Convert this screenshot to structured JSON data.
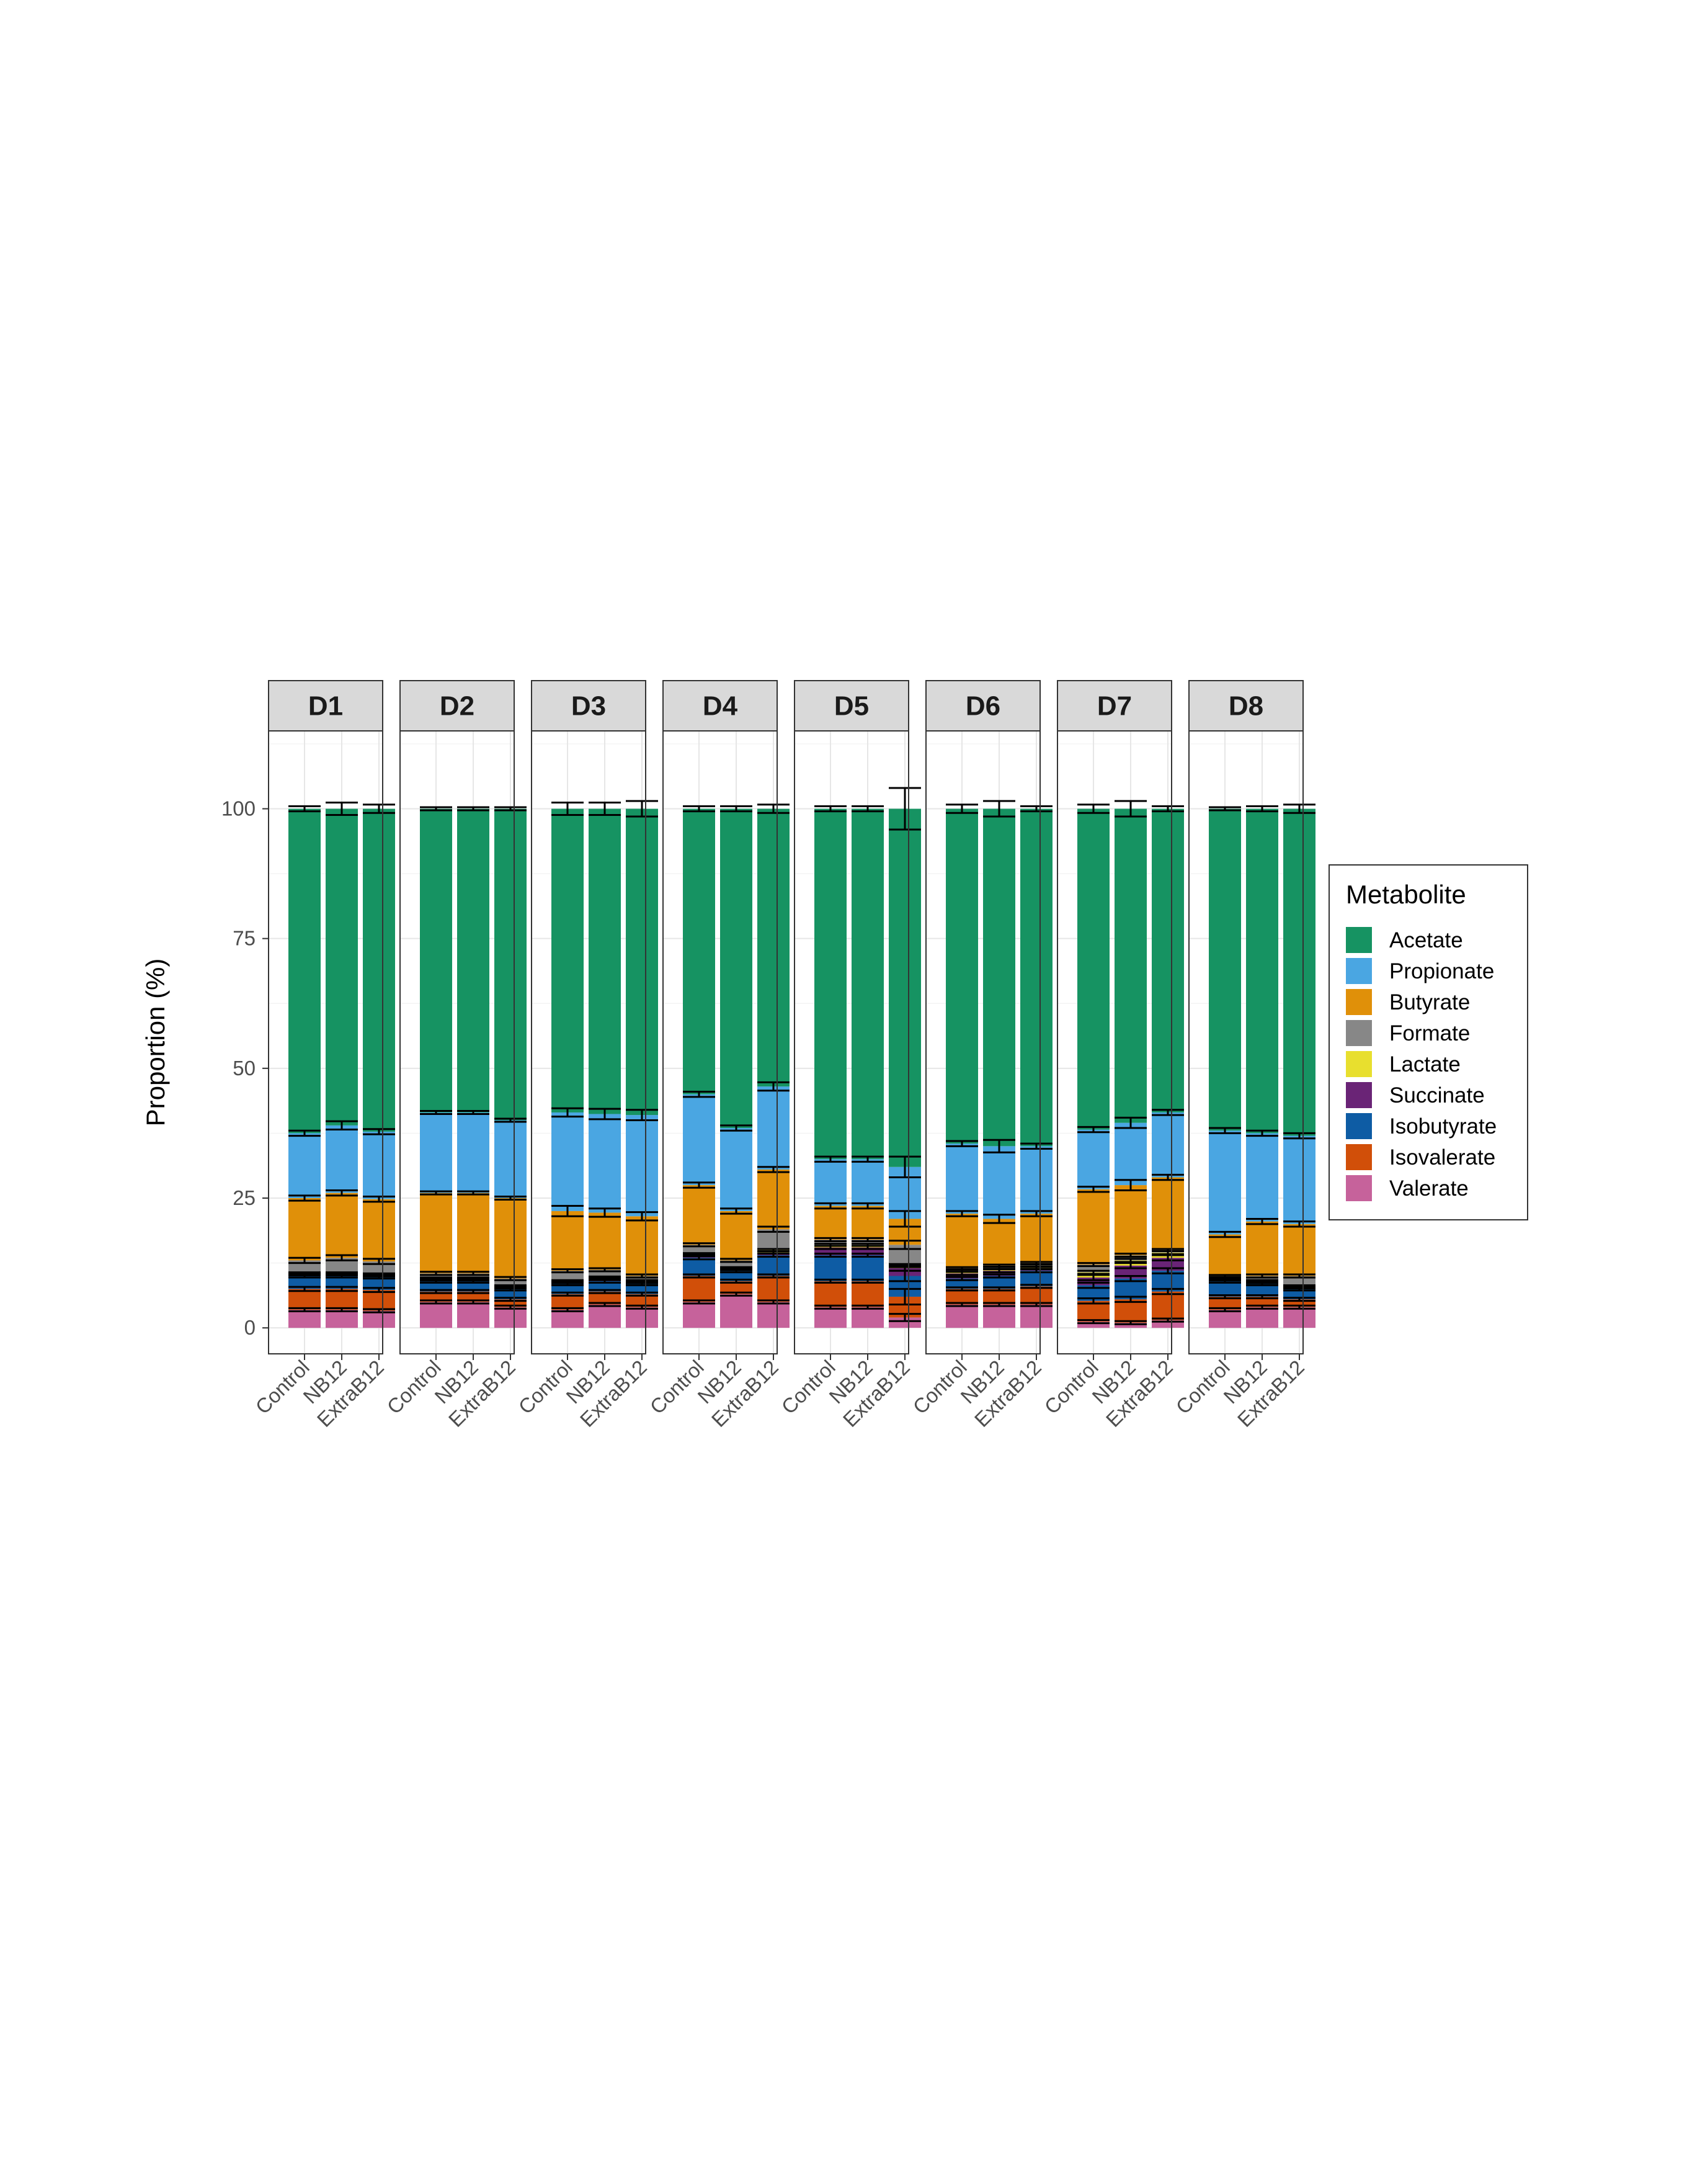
{
  "chart_data": {
    "type": "bar",
    "stacked": true,
    "ylabel": "Proportion (%)",
    "ylim": [
      -5,
      115
    ],
    "yticks": [
      0,
      25,
      50,
      75,
      100
    ],
    "panels": [
      "D1",
      "D2",
      "D3",
      "D4",
      "D5",
      "D6",
      "D7",
      "D8"
    ],
    "categories": [
      "Control",
      "NB12",
      "ExtraB12"
    ],
    "legend": {
      "title": "Metabolite",
      "position": "right"
    },
    "grid": true,
    "colors": {
      "Acetate": "#169362",
      "Propionate": "#4aa6e2",
      "Butyrate": "#e09009",
      "Formate": "#878787",
      "Lactate": "#e8df2e",
      "Succinate": "#6a2476",
      "Isobutyrate": "#0e5ca4",
      "Isovalerate": "#d14f09",
      "Valerate": "#c6629b"
    },
    "stack_order_bottom_to_top": [
      "Valerate",
      "Isovalerate",
      "Isobutyrate",
      "Succinate",
      "Lactate",
      "Formate",
      "Butyrate",
      "Propionate",
      "Acetate"
    ],
    "data": {
      "D1": {
        "Control": {
          "Valerate": [
            3.5,
            0.3
          ],
          "Isovalerate": [
            4,
            0.4
          ],
          "Isobutyrate": [
            2.5,
            0.3
          ],
          "Succinate": [
            0.3,
            0.2
          ],
          "Lactate": [
            0.2,
            0.2
          ],
          "Formate": [
            2.5,
            0.5
          ],
          "Butyrate": [
            12,
            0.5
          ],
          "Propionate": [
            12.5,
            0.5
          ],
          "Acetate": [
            62.5,
            0.5
          ]
        },
        "NB12": {
          "Valerate": [
            3.5,
            0.3
          ],
          "Isovalerate": [
            4,
            0.4
          ],
          "Isobutyrate": [
            2.5,
            0.3
          ],
          "Succinate": [
            0.3,
            0.2
          ],
          "Lactate": [
            0.2,
            0.2
          ],
          "Formate": [
            3,
            0.5
          ],
          "Butyrate": [
            12.5,
            0.5
          ],
          "Propionate": [
            13,
            0.8
          ],
          "Acetate": [
            61,
            1.2
          ]
        },
        "ExtraB12": {
          "Valerate": [
            3.3,
            0.3
          ],
          "Isovalerate": [
            4,
            0.4
          ],
          "Isobutyrate": [
            2.5,
            0.3
          ],
          "Succinate": [
            0.3,
            0.2
          ],
          "Lactate": [
            0.2,
            0.2
          ],
          "Formate": [
            2.5,
            0.5
          ],
          "Butyrate": [
            12,
            0.5
          ],
          "Propionate": [
            13,
            0.5
          ],
          "Acetate": [
            62.2,
            0.8
          ]
        }
      },
      "D2": {
        "Control": {
          "Valerate": [
            5,
            0.3
          ],
          "Isovalerate": [
            2,
            0.3
          ],
          "Isobutyrate": [
            2,
            0.3
          ],
          "Succinate": [
            0.3,
            0.2
          ],
          "Lactate": [
            0.2,
            0.2
          ],
          "Formate": [
            1,
            0.3
          ],
          "Butyrate": [
            15.5,
            0.3
          ],
          "Propionate": [
            15.5,
            0.3
          ],
          "Acetate": [
            58.5,
            0.3
          ]
        },
        "NB12": {
          "Valerate": [
            5,
            0.3
          ],
          "Isovalerate": [
            2,
            0.3
          ],
          "Isobutyrate": [
            2,
            0.3
          ],
          "Succinate": [
            0.3,
            0.2
          ],
          "Lactate": [
            0.2,
            0.2
          ],
          "Formate": [
            1,
            0.3
          ],
          "Butyrate": [
            15.5,
            0.3
          ],
          "Propionate": [
            15.5,
            0.3
          ],
          "Acetate": [
            58.5,
            0.3
          ]
        },
        "ExtraB12": {
          "Valerate": [
            4,
            0.3
          ],
          "Isovalerate": [
            1.5,
            0.3
          ],
          "Isobutyrate": [
            2,
            0.3
          ],
          "Succinate": [
            0.3,
            0.2
          ],
          "Lactate": [
            0.2,
            0.2
          ],
          "Formate": [
            1.5,
            0.3
          ],
          "Butyrate": [
            15.5,
            0.3
          ],
          "Propionate": [
            15,
            0.3
          ],
          "Acetate": [
            60,
            0.3
          ]
        }
      },
      "D3": {
        "Control": {
          "Valerate": [
            3.5,
            0.3
          ],
          "Isovalerate": [
            3,
            0.3
          ],
          "Isobutyrate": [
            2,
            0.3
          ],
          "Succinate": [
            0.3,
            0.2
          ],
          "Lactate": [
            0.2,
            0.2
          ],
          "Formate": [
            2,
            0.3
          ],
          "Butyrate": [
            11.5,
            1
          ],
          "Propionate": [
            19,
            0.8
          ],
          "Acetate": [
            58.5,
            1.2
          ]
        },
        "NB12": {
          "Valerate": [
            4.5,
            0.3
          ],
          "Isovalerate": [
            2.5,
            0.3
          ],
          "Isobutyrate": [
            2,
            0.3
          ],
          "Succinate": [
            0.5,
            0.3
          ],
          "Lactate": [
            0.2,
            0.2
          ],
          "Formate": [
            1.5,
            0.3
          ],
          "Butyrate": [
            11,
            0.8
          ],
          "Propionate": [
            19,
            1
          ],
          "Acetate": [
            58.8,
            1.2
          ]
        },
        "ExtraB12": {
          "Valerate": [
            4,
            0.3
          ],
          "Isovalerate": [
            2.5,
            0.3
          ],
          "Isobutyrate": [
            2,
            0.3
          ],
          "Succinate": [
            0.3,
            0.2
          ],
          "Lactate": [
            0.2,
            0.2
          ],
          "Formate": [
            1,
            0.3
          ],
          "Butyrate": [
            11.5,
            0.8
          ],
          "Propionate": [
            19.5,
            1
          ],
          "Acetate": [
            59,
            1.5
          ]
        }
      },
      "D4": {
        "Control": {
          "Valerate": [
            5,
            0.3
          ],
          "Isovalerate": [
            5,
            0.3
          ],
          "Isobutyrate": [
            3.5,
            0.3
          ],
          "Succinate": [
            0.5,
            0.2
          ],
          "Lactate": [
            0.2,
            0.2
          ],
          "Formate": [
            1.8,
            0.3
          ],
          "Butyrate": [
            11.5,
            0.5
          ],
          "Propionate": [
            17.5,
            0.5
          ],
          "Acetate": [
            55,
            0.5
          ]
        },
        "NB12": {
          "Valerate": [
            6.5,
            0.3
          ],
          "Isovalerate": [
            2.5,
            0.3
          ],
          "Isobutyrate": [
            2,
            0.3
          ],
          "Succinate": [
            0.3,
            0.2
          ],
          "Lactate": [
            0.2,
            0.2
          ],
          "Formate": [
            1.5,
            0.3
          ],
          "Butyrate": [
            9.5,
            0.5
          ],
          "Propionate": [
            16,
            0.5
          ],
          "Acetate": [
            61.5,
            0.5
          ]
        },
        "ExtraB12": {
          "Valerate": [
            5,
            0.3
          ],
          "Isovalerate": [
            5,
            0.3
          ],
          "Isobutyrate": [
            4,
            0.3
          ],
          "Succinate": [
            0.5,
            0.2
          ],
          "Lactate": [
            0.5,
            0.2
          ],
          "Formate": [
            4,
            0.5
          ],
          "Butyrate": [
            11.5,
            0.5
          ],
          "Propionate": [
            16,
            0.8
          ],
          "Acetate": [
            53.5,
            0.8
          ]
        }
      },
      "D5": {
        "Control": {
          "Valerate": [
            4,
            0.3
          ],
          "Isovalerate": [
            5,
            0.3
          ],
          "Isobutyrate": [
            5,
            0.3
          ],
          "Succinate": [
            1.5,
            0.3
          ],
          "Lactate": [
            0.5,
            0.2
          ],
          "Formate": [
            1,
            0.3
          ],
          "Butyrate": [
            6.5,
            0.5
          ],
          "Propionate": [
            9,
            0.5
          ],
          "Acetate": [
            67.5,
            0.5
          ]
        },
        "NB12": {
          "Valerate": [
            4,
            0.3
          ],
          "Isovalerate": [
            5,
            0.3
          ],
          "Isobutyrate": [
            5,
            0.3
          ],
          "Succinate": [
            1.5,
            0.3
          ],
          "Lactate": [
            0.5,
            0.2
          ],
          "Formate": [
            1,
            0.3
          ],
          "Butyrate": [
            6.5,
            0.5
          ],
          "Propionate": [
            9,
            0.5
          ],
          "Acetate": [
            67.5,
            0.5
          ]
        },
        "ExtraB12": {
          "Valerate": [
            2,
            0.7
          ],
          "Isovalerate": [
            4,
            1.5
          ],
          "Isobutyrate": [
            4,
            1
          ],
          "Succinate": [
            1.5,
            0.5
          ],
          "Lactate": [
            0.5,
            0.3
          ],
          "Formate": [
            4,
            0.8
          ],
          "Butyrate": [
            5,
            1.5
          ],
          "Propionate": [
            10,
            2
          ],
          "Acetate": [
            69,
            4
          ]
        }
      },
      "D6": {
        "Control": {
          "Valerate": [
            4.5,
            0.3
          ],
          "Isovalerate": [
            3,
            0.3
          ],
          "Isobutyrate": [
            2,
            0.3
          ],
          "Succinate": [
            1,
            0.3
          ],
          "Lactate": [
            0.5,
            0.2
          ],
          "Formate": [
            0.5,
            0.2
          ],
          "Butyrate": [
            10.5,
            0.5
          ],
          "Propionate": [
            13.5,
            0.5
          ],
          "Acetate": [
            64.5,
            0.8
          ]
        },
        "NB12": {
          "Valerate": [
            4.5,
            0.3
          ],
          "Isovalerate": [
            3,
            0.3
          ],
          "Isobutyrate": [
            2.5,
            0.3
          ],
          "Succinate": [
            1,
            0.3
          ],
          "Lactate": [
            0.5,
            0.2
          ],
          "Formate": [
            0.5,
            0.2
          ],
          "Butyrate": [
            9,
            0.8
          ],
          "Propionate": [
            14,
            1.2
          ],
          "Acetate": [
            65,
            1.5
          ]
        },
        "ExtraB12": {
          "Valerate": [
            4.5,
            0.3
          ],
          "Isovalerate": [
            3.5,
            0.3
          ],
          "Isobutyrate": [
            3,
            0.3
          ],
          "Succinate": [
            0.5,
            0.2
          ],
          "Lactate": [
            0.5,
            0.2
          ],
          "Formate": [
            0.5,
            0.2
          ],
          "Butyrate": [
            9.5,
            0.5
          ],
          "Propionate": [
            13,
            0.5
          ],
          "Acetate": [
            65,
            0.5
          ]
        }
      },
      "D7": {
        "Control": {
          "Valerate": [
            1.2,
            0.3
          ],
          "Isovalerate": [
            4,
            0.5
          ],
          "Isobutyrate": [
            3,
            0.5
          ],
          "Succinate": [
            1.5,
            0.5
          ],
          "Lactate": [
            1,
            0.3
          ],
          "Formate": [
            1.5,
            0.3
          ],
          "Butyrate": [
            14.5,
            0.5
          ],
          "Propionate": [
            11.5,
            0.5
          ],
          "Acetate": [
            61.8,
            0.8
          ]
        },
        "NB12": {
          "Valerate": [
            1,
            0.3
          ],
          "Isovalerate": [
            4.5,
            0.5
          ],
          "Isobutyrate": [
            4,
            0.5
          ],
          "Succinate": [
            2.5,
            0.5
          ],
          "Lactate": [
            1,
            0.3
          ],
          "Formate": [
            1,
            0.3
          ],
          "Butyrate": [
            13.5,
            1
          ],
          "Propionate": [
            12,
            1
          ],
          "Acetate": [
            60.5,
            1.5
          ]
        },
        "ExtraB12": {
          "Valerate": [
            1.5,
            0.3
          ],
          "Isovalerate": [
            5.5,
            0.5
          ],
          "Isobutyrate": [
            4,
            0.5
          ],
          "Succinate": [
            2.5,
            0.5
          ],
          "Lactate": [
            1,
            0.3
          ],
          "Formate": [
            0.5,
            0.2
          ],
          "Butyrate": [
            14,
            0.5
          ],
          "Propionate": [
            12.5,
            0.5
          ],
          "Acetate": [
            58.5,
            0.5
          ]
        }
      },
      "D8": {
        "Control": {
          "Valerate": [
            3.5,
            0.3
          ],
          "Isovalerate": [
            2.5,
            0.3
          ],
          "Isobutyrate": [
            3,
            0.3
          ],
          "Succinate": [
            0.3,
            0.2
          ],
          "Lactate": [
            0.2,
            0.2
          ],
          "Formate": [
            0.5,
            0.2
          ],
          "Butyrate": [
            8,
            0.5
          ],
          "Propionate": [
            20,
            0.5
          ],
          "Acetate": [
            62,
            0.3
          ]
        },
        "NB12": {
          "Valerate": [
            4,
            0.3
          ],
          "Isovalerate": [
            2,
            0.3
          ],
          "Isobutyrate": [
            2.5,
            0.3
          ],
          "Succinate": [
            0.3,
            0.2
          ],
          "Lactate": [
            0.2,
            0.2
          ],
          "Formate": [
            1,
            0.3
          ],
          "Butyrate": [
            10.5,
            0.5
          ],
          "Propionate": [
            17,
            0.5
          ],
          "Acetate": [
            62.5,
            0.5
          ]
        },
        "ExtraB12": {
          "Valerate": [
            4,
            0.3
          ],
          "Isovalerate": [
            1.5,
            0.3
          ],
          "Isobutyrate": [
            2,
            0.3
          ],
          "Succinate": [
            0.3,
            0.2
          ],
          "Lactate": [
            0.2,
            0.2
          ],
          "Formate": [
            2,
            0.3
          ],
          "Butyrate": [
            10,
            0.5
          ],
          "Propionate": [
            17,
            0.5
          ],
          "Acetate": [
            63,
            0.8
          ]
        }
      }
    }
  }
}
